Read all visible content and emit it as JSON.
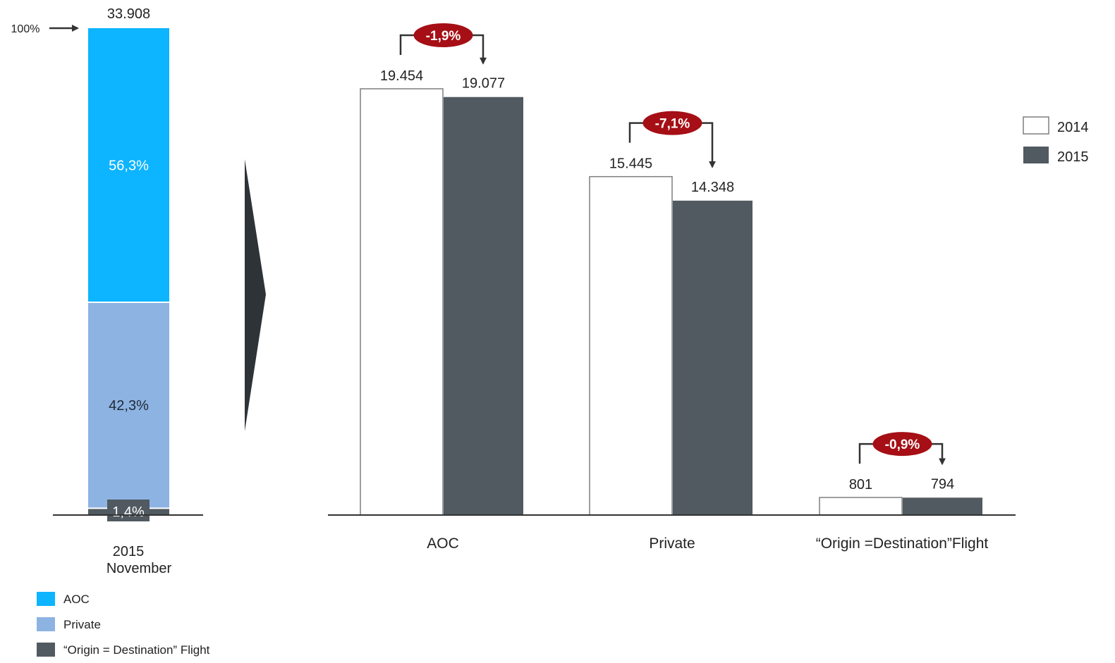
{
  "colors": {
    "aoc": "#0DB4FF",
    "private": "#8DB3E2",
    "ood": "#515A61",
    "y2014_fill": "#FFFFFF",
    "y2014_stroke": "#7F7F7F",
    "y2015": "#515A61",
    "badge": "#A50F15",
    "axis": "#333333",
    "chevron": "#2E3338",
    "text": "#222222"
  },
  "chart_data": [
    {
      "type": "bar",
      "subtype": "stacked-100",
      "total_label": "33.908",
      "pointer_label": "100%",
      "category": "2015 November",
      "category_lines": [
        "2015",
        "November"
      ],
      "ylim": [
        0,
        100
      ],
      "segments": [
        {
          "name": "“Origin = Destination” Flight",
          "value": 1.4,
          "label": "1,4%",
          "color_key": "ood"
        },
        {
          "name": "Private",
          "value": 42.3,
          "label": "42,3%",
          "color_key": "private"
        },
        {
          "name": "AOC",
          "value": 56.3,
          "label": "56,3%",
          "color_key": "aoc"
        }
      ],
      "legend": [
        {
          "label": "AOC",
          "color_key": "aoc"
        },
        {
          "label": "Private",
          "color_key": "private"
        },
        {
          "label": "“Origin = Destination” Flight",
          "color_key": "ood"
        }
      ],
      "legend_position": "bottom-left"
    },
    {
      "type": "bar",
      "categories": [
        "AOC",
        "Private",
        "“Origin =Destination”Flight"
      ],
      "series": [
        {
          "name": "2014",
          "values": [
            19454,
            15445,
            801
          ],
          "labels": [
            "19.454",
            "15.445",
            "801"
          ]
        },
        {
          "name": "2015",
          "values": [
            19077,
            14348,
            794
          ],
          "labels": [
            "19.077",
            "14.348",
            "794"
          ]
        }
      ],
      "changes": [
        "-1,9%",
        "-7,1%",
        "-0,9%"
      ],
      "ylim": [
        0,
        19454
      ],
      "legend_position": "top-right",
      "grid": false
    }
  ]
}
